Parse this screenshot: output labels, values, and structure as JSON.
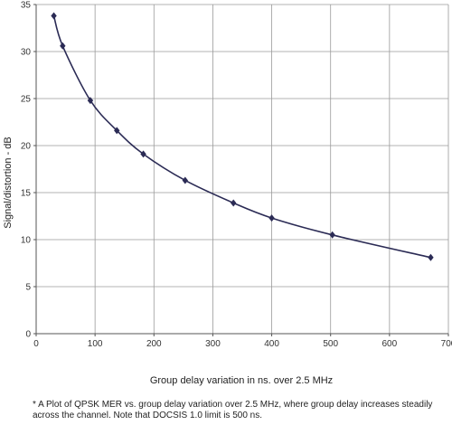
{
  "chart_data": {
    "type": "line",
    "title": "",
    "xlabel": "Group delay variation in ns. over 2.5 MHz",
    "ylabel": "Signal/distortion - dB",
    "xlim": [
      0,
      700
    ],
    "ylim": [
      0,
      35
    ],
    "xticks": [
      0,
      100,
      200,
      300,
      400,
      500,
      600,
      700
    ],
    "yticks": [
      0,
      5,
      10,
      15,
      20,
      25,
      30,
      35
    ],
    "grid": true,
    "legend": "none",
    "series": [
      {
        "color": "#2b2b55",
        "marker": "diamond",
        "points": [
          {
            "x": 30,
            "y": 33.8
          },
          {
            "x": 45,
            "y": 30.6
          },
          {
            "x": 92,
            "y": 24.8
          },
          {
            "x": 137,
            "y": 21.6
          },
          {
            "x": 182,
            "y": 19.1
          },
          {
            "x": 253,
            "y": 16.3
          },
          {
            "x": 335,
            "y": 13.9
          },
          {
            "x": 400,
            "y": 12.3
          },
          {
            "x": 503,
            "y": 10.5
          },
          {
            "x": 670,
            "y": 8.1
          }
        ]
      }
    ],
    "caption": "* A Plot of QPSK MER vs. group delay variation over 2.5 MHz, where group delay increases steadily across the channel.  Note that DOCSIS 1.0 limit is 500 ns."
  }
}
